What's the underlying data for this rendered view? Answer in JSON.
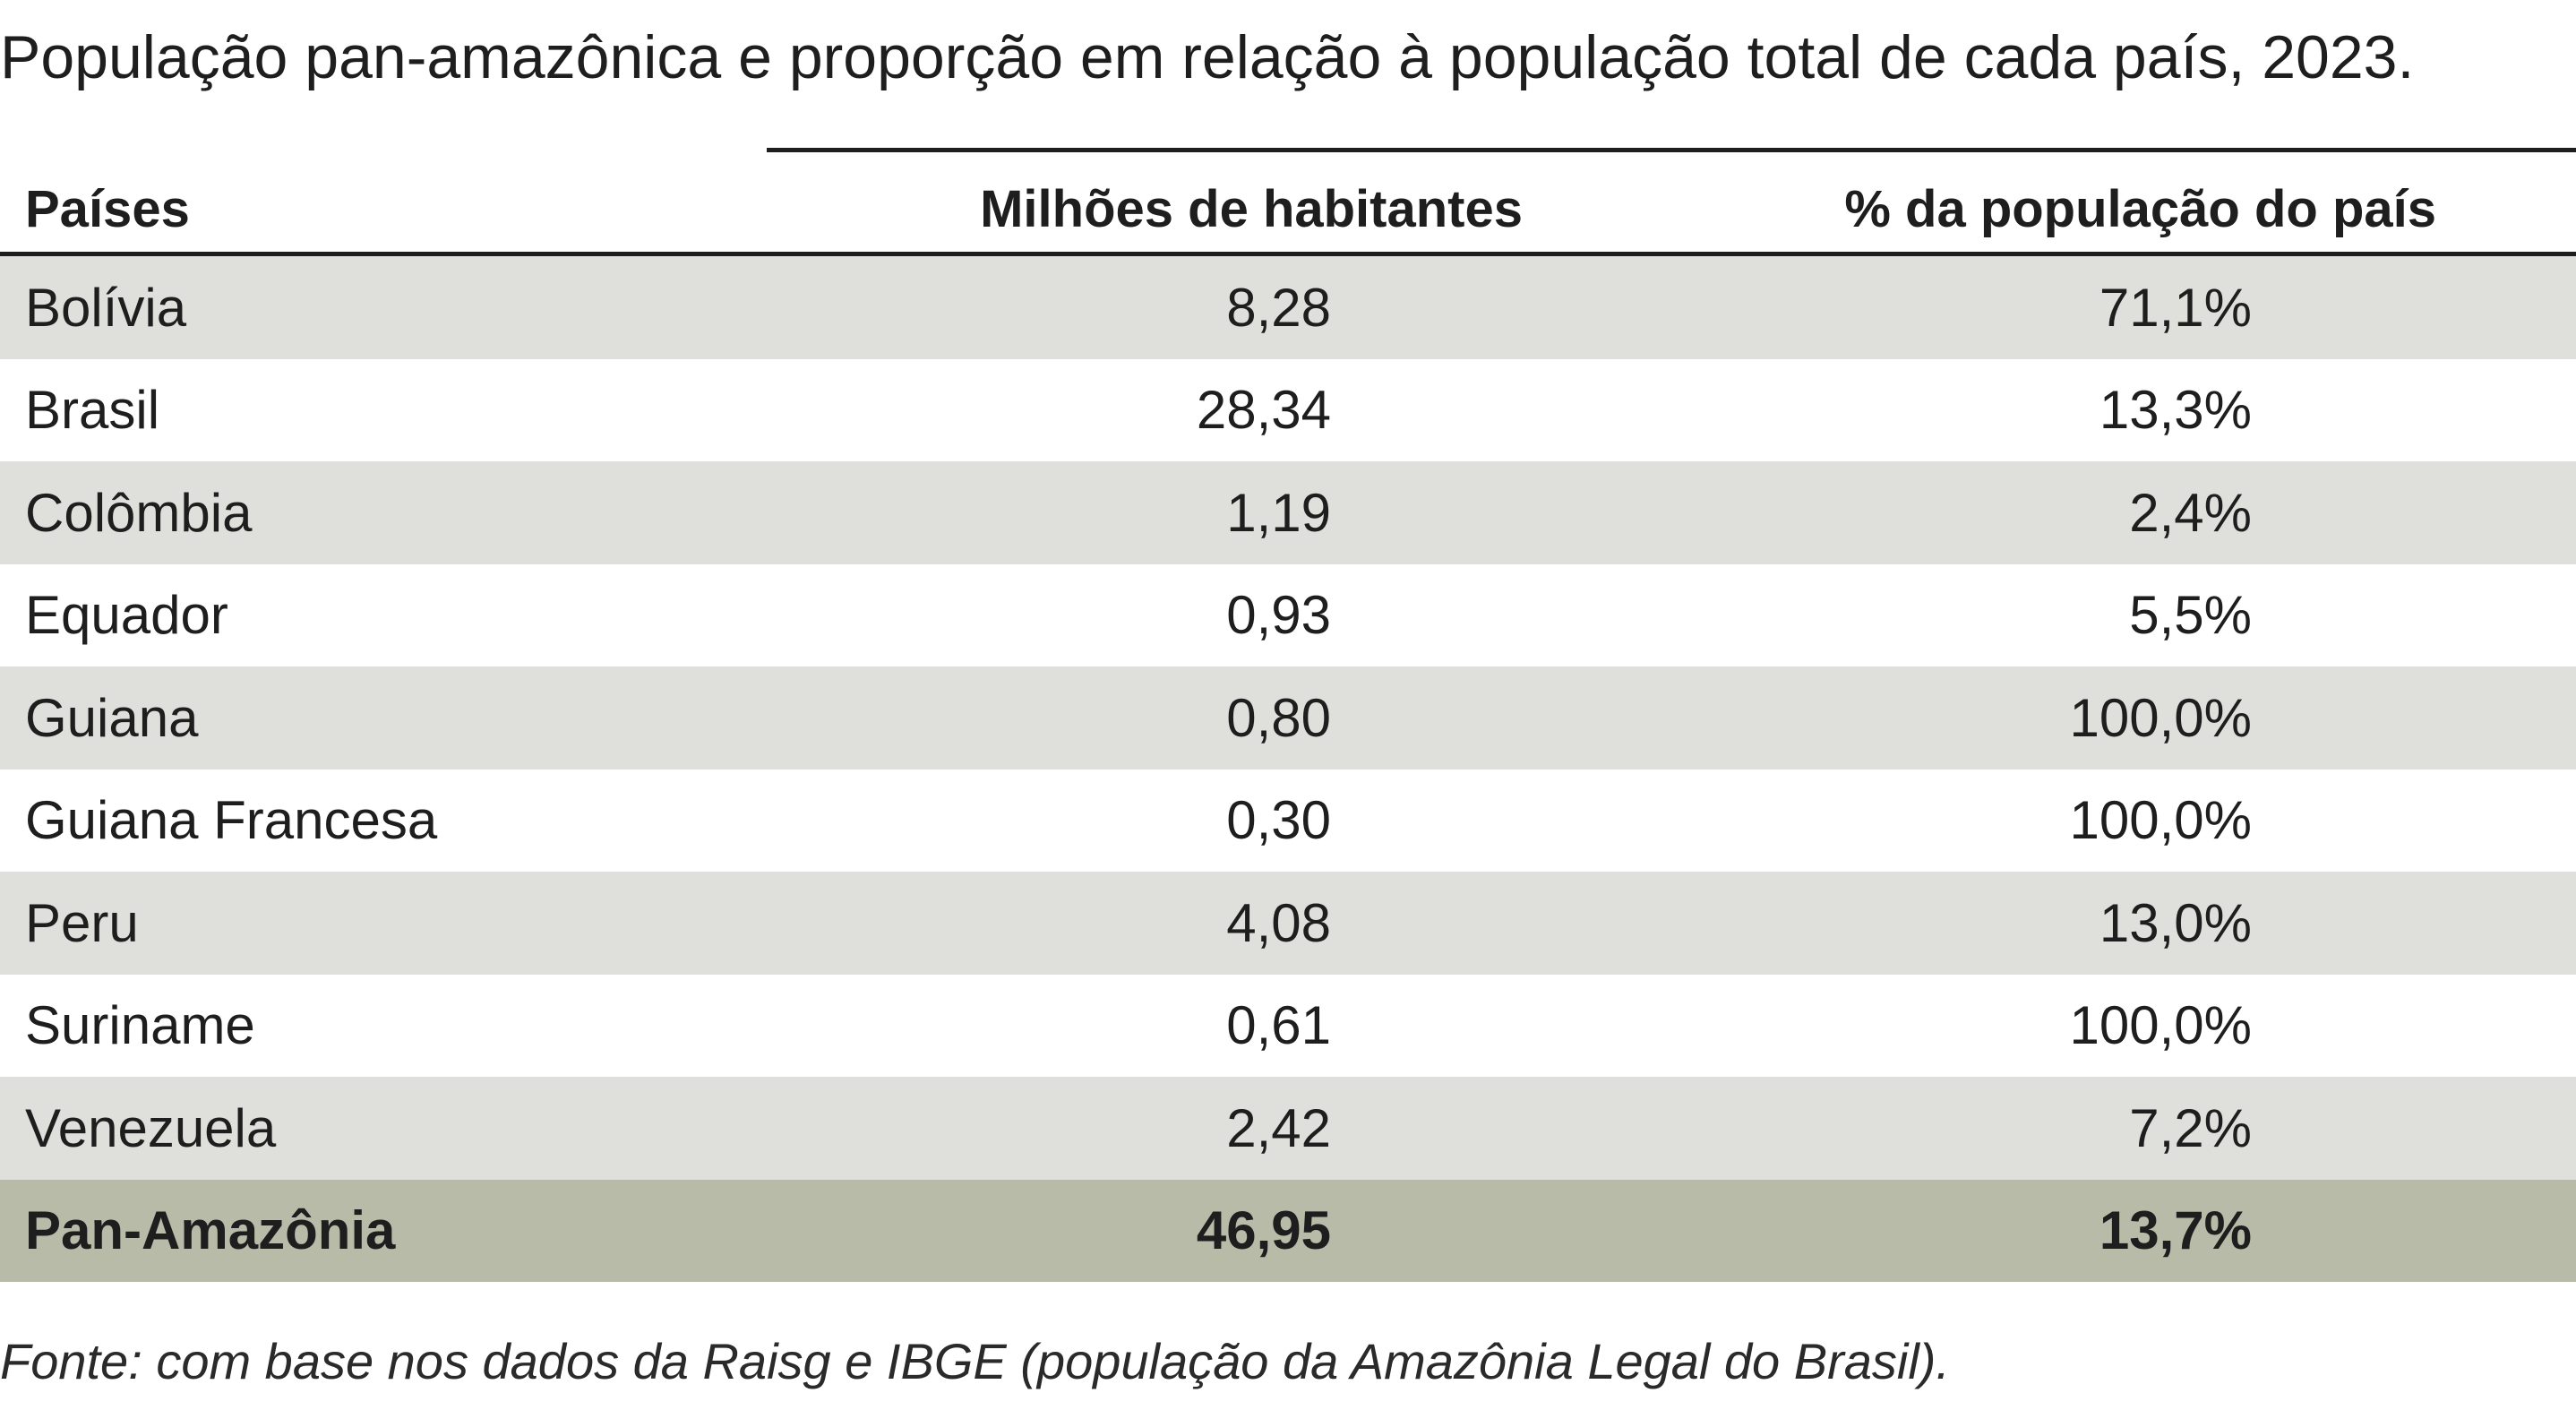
{
  "title": "População pan-amazônica e proporção em relação à população total de cada país, 2023.",
  "table": {
    "headers": {
      "country": "Países",
      "population": "Milhões de habitantes",
      "percent": "% da população do país"
    },
    "rows": [
      {
        "country": "Bolívia",
        "population": "8,28",
        "percent": "71,1%"
      },
      {
        "country": "Brasil",
        "population": "28,34",
        "percent": "13,3%"
      },
      {
        "country": "Colômbia",
        "population": "1,19",
        "percent": "2,4%"
      },
      {
        "country": "Equador",
        "population": "0,93",
        "percent": "5,5%"
      },
      {
        "country": "Guiana",
        "population": "0,80",
        "percent": "100,0%"
      },
      {
        "country": "Guiana Francesa",
        "population": "0,30",
        "percent": "100,0%"
      },
      {
        "country": "Peru",
        "population": "4,08",
        "percent": "13,0%"
      },
      {
        "country": "Suriname",
        "population": "0,61",
        "percent": "100,0%"
      },
      {
        "country": "Venezuela",
        "population": "2,42",
        "percent": "7,2%"
      }
    ],
    "total": {
      "country": "Pan-Amazônia",
      "population": "46,95",
      "percent": "13,7%"
    }
  },
  "source": "Fonte: com base nos dados da Raisg e IBGE (população da Amazônia Legal do Brasil).",
  "colors": {
    "shaded_row": "#dfdfdb",
    "total_row": "#b8bba8",
    "rule": "#1e1e1e"
  }
}
